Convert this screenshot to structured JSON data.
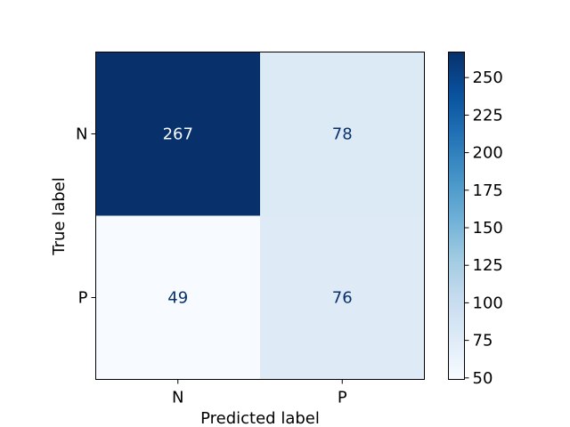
{
  "chart_data": {
    "type": "heatmap",
    "title": "",
    "xlabel": "Predicted label",
    "ylabel": "True label",
    "x_categories": [
      "N",
      "P"
    ],
    "y_categories": [
      "N",
      "P"
    ],
    "values": [
      [
        267,
        78
      ],
      [
        49,
        76
      ]
    ],
    "colormap": "Blues",
    "colorbar": {
      "range": [
        49,
        267
      ],
      "ticks": [
        50,
        75,
        100,
        125,
        150,
        175,
        200,
        225,
        250
      ]
    },
    "colors": {
      "high": "#08306b",
      "low": "#f7fbff",
      "dark_text": "#08306b",
      "light_text": "#f7fbff"
    },
    "grid": false,
    "legend": "colorbar-right"
  }
}
